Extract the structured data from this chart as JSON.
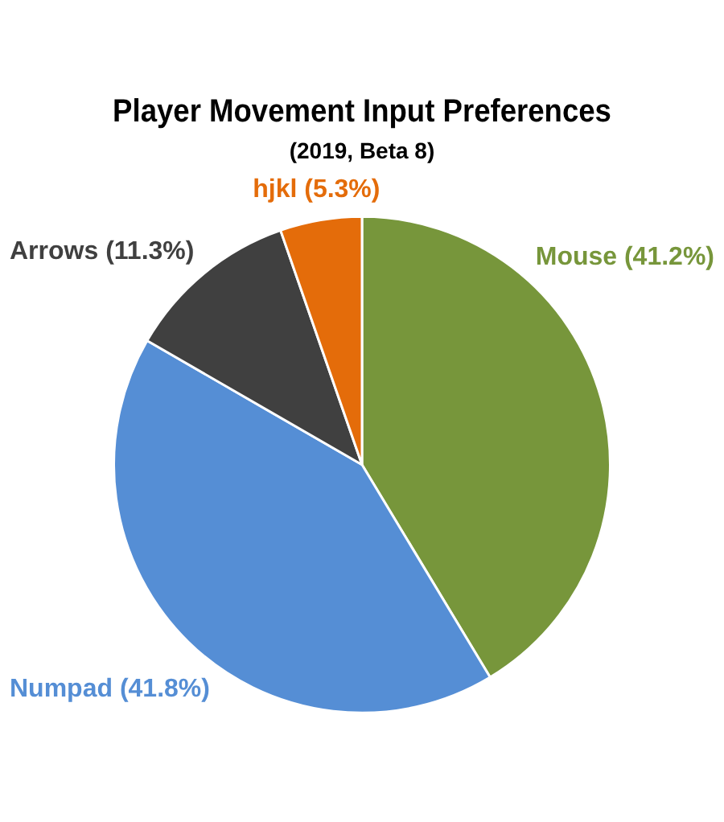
{
  "chart_data": {
    "type": "pie",
    "title": "Player Movement Input Preferences",
    "subtitle": "(2019, Beta 8)",
    "categories": [
      "Mouse",
      "Numpad",
      "Arrows",
      "hjkl"
    ],
    "values": [
      41.2,
      41.8,
      11.3,
      5.3
    ],
    "colors": [
      "#77963b",
      "#558ed5",
      "#404040",
      "#e46c0a"
    ],
    "value_labels": [
      "(41.2%)",
      "(41.8%)",
      "(11.3%)",
      "(5.3%)"
    ],
    "legend": false
  }
}
